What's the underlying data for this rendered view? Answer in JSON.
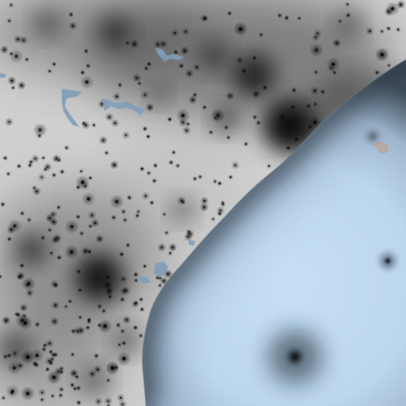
{
  "map": {
    "style": "night-lights-density",
    "colors": {
      "land_light": "#d2d2d2",
      "land_dark": "#050505",
      "ocean_light": "#c4dcf1",
      "ocean_edge": "#1a2028",
      "lake": "#7a98b4"
    },
    "features": [
      {
        "name": "coastline",
        "kind": "coast"
      },
      {
        "name": "ocean",
        "kind": "water"
      },
      {
        "name": "inland-lakes",
        "kind": "water"
      },
      {
        "name": "city-glow-clusters",
        "kind": "urban"
      },
      {
        "name": "offshore-light-1",
        "kind": "urban"
      },
      {
        "name": "offshore-light-2",
        "kind": "urban"
      }
    ]
  }
}
